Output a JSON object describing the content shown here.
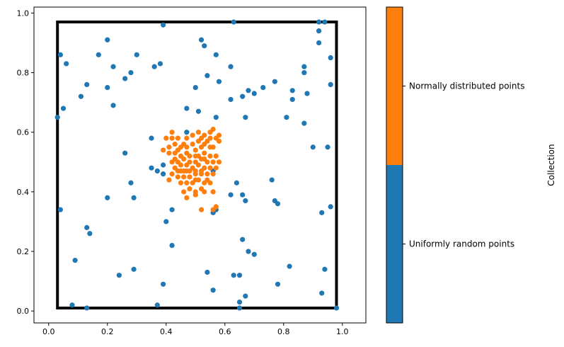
{
  "chart_data": {
    "type": "scatter",
    "title": "",
    "xlabel": "",
    "ylabel": "",
    "xlim": [
      -0.05,
      1.08
    ],
    "ylim": [
      -0.04,
      1.02
    ],
    "xticks": [
      0.0,
      0.2,
      0.4,
      0.6,
      0.8,
      1.0
    ],
    "yticks": [
      0.0,
      0.2,
      0.4,
      0.6,
      0.8,
      1.0
    ],
    "tick_labels": [
      "0.0",
      "0.2",
      "0.4",
      "0.6",
      "0.8",
      "1.0"
    ],
    "grid": false,
    "boundary_rectangle": {
      "x": [
        0.03,
        0.98
      ],
      "y": [
        0.01,
        0.97
      ],
      "color": "#000000"
    },
    "colorbar": {
      "label": "Collection",
      "categories": [
        "Uniformly random points",
        "Normally distributed points"
      ]
    },
    "series": [
      {
        "name": "Uniformly random points",
        "color": "#1f77b4",
        "points": [
          [
            0.04,
            0.86
          ],
          [
            0.06,
            0.83
          ],
          [
            0.03,
            0.65
          ],
          [
            0.05,
            0.68
          ],
          [
            0.04,
            0.34
          ],
          [
            0.09,
            0.17
          ],
          [
            0.08,
            0.02
          ],
          [
            0.13,
            0.01
          ],
          [
            0.13,
            0.28
          ],
          [
            0.14,
            0.26
          ],
          [
            0.11,
            0.72
          ],
          [
            0.13,
            0.76
          ],
          [
            0.17,
            0.86
          ],
          [
            0.2,
            0.91
          ],
          [
            0.22,
            0.82
          ],
          [
            0.2,
            0.75
          ],
          [
            0.22,
            0.69
          ],
          [
            0.26,
            0.78
          ],
          [
            0.28,
            0.8
          ],
          [
            0.3,
            0.86
          ],
          [
            0.26,
            0.53
          ],
          [
            0.2,
            0.38
          ],
          [
            0.28,
            0.43
          ],
          [
            0.29,
            0.38
          ],
          [
            0.24,
            0.12
          ],
          [
            0.29,
            0.14
          ],
          [
            0.39,
            0.96
          ],
          [
            0.38,
            0.83
          ],
          [
            0.36,
            0.82
          ],
          [
            0.35,
            0.58
          ],
          [
            0.35,
            0.48
          ],
          [
            0.37,
            0.47
          ],
          [
            0.39,
            0.49
          ],
          [
            0.39,
            0.46
          ],
          [
            0.4,
            0.3
          ],
          [
            0.42,
            0.34
          ],
          [
            0.42,
            0.22
          ],
          [
            0.39,
            0.09
          ],
          [
            0.37,
            0.02
          ],
          [
            0.47,
            0.6
          ],
          [
            0.47,
            0.68
          ],
          [
            0.5,
            0.75
          ],
          [
            0.51,
            0.67
          ],
          [
            0.52,
            0.91
          ],
          [
            0.53,
            0.89
          ],
          [
            0.54,
            0.79
          ],
          [
            0.57,
            0.86
          ],
          [
            0.58,
            0.77
          ],
          [
            0.63,
            0.97
          ],
          [
            0.62,
            0.82
          ],
          [
            0.62,
            0.71
          ],
          [
            0.57,
            0.65
          ],
          [
            0.66,
            0.72
          ],
          [
            0.68,
            0.74
          ],
          [
            0.7,
            0.73
          ],
          [
            0.73,
            0.75
          ],
          [
            0.77,
            0.77
          ],
          [
            0.81,
            0.65
          ],
          [
            0.83,
            0.74
          ],
          [
            0.83,
            0.71
          ],
          [
            0.87,
            0.8
          ],
          [
            0.87,
            0.82
          ],
          [
            0.88,
            0.73
          ],
          [
            0.87,
            0.63
          ],
          [
            0.92,
            0.97
          ],
          [
            0.94,
            0.97
          ],
          [
            0.92,
            0.94
          ],
          [
            0.92,
            0.9
          ],
          [
            0.96,
            0.85
          ],
          [
            0.96,
            0.76
          ],
          [
            0.9,
            0.55
          ],
          [
            0.95,
            0.55
          ],
          [
            0.96,
            0.35
          ],
          [
            0.93,
            0.33
          ],
          [
            0.94,
            0.14
          ],
          [
            0.93,
            0.06
          ],
          [
            0.98,
            0.01
          ],
          [
            0.82,
            0.15
          ],
          [
            0.78,
            0.09
          ],
          [
            0.76,
            0.44
          ],
          [
            0.77,
            0.37
          ],
          [
            0.78,
            0.36
          ],
          [
            0.67,
            0.65
          ],
          [
            0.64,
            0.43
          ],
          [
            0.62,
            0.39
          ],
          [
            0.66,
            0.39
          ],
          [
            0.67,
            0.37
          ],
          [
            0.66,
            0.24
          ],
          [
            0.68,
            0.2
          ],
          [
            0.7,
            0.19
          ],
          [
            0.63,
            0.12
          ],
          [
            0.65,
            0.12
          ],
          [
            0.67,
            0.05
          ],
          [
            0.65,
            0.03
          ],
          [
            0.65,
            0.01
          ],
          [
            0.56,
            0.07
          ],
          [
            0.54,
            0.13
          ],
          [
            0.56,
            0.33
          ],
          [
            0.57,
            0.34
          ],
          [
            0.56,
            0.47
          ]
        ]
      },
      {
        "name": "Normally distributed points",
        "color": "#ff7f0e",
        "points": [
          [
            0.42,
            0.6
          ],
          [
            0.4,
            0.58
          ],
          [
            0.42,
            0.58
          ],
          [
            0.44,
            0.58
          ],
          [
            0.41,
            0.55
          ],
          [
            0.43,
            0.56
          ],
          [
            0.39,
            0.54
          ],
          [
            0.41,
            0.53
          ],
          [
            0.43,
            0.53
          ],
          [
            0.45,
            0.52
          ],
          [
            0.47,
            0.53
          ],
          [
            0.49,
            0.56
          ],
          [
            0.47,
            0.55
          ],
          [
            0.5,
            0.54
          ],
          [
            0.52,
            0.55
          ],
          [
            0.54,
            0.57
          ],
          [
            0.52,
            0.58
          ],
          [
            0.55,
            0.58
          ],
          [
            0.57,
            0.58
          ],
          [
            0.58,
            0.57
          ],
          [
            0.56,
            0.55
          ],
          [
            0.53,
            0.53
          ],
          [
            0.55,
            0.52
          ],
          [
            0.57,
            0.52
          ],
          [
            0.58,
            0.5
          ],
          [
            0.56,
            0.5
          ],
          [
            0.54,
            0.5
          ],
          [
            0.52,
            0.51
          ],
          [
            0.5,
            0.52
          ],
          [
            0.48,
            0.52
          ],
          [
            0.46,
            0.51
          ],
          [
            0.44,
            0.5
          ],
          [
            0.42,
            0.5
          ],
          [
            0.43,
            0.48
          ],
          [
            0.45,
            0.47
          ],
          [
            0.47,
            0.47
          ],
          [
            0.49,
            0.48
          ],
          [
            0.51,
            0.49
          ],
          [
            0.53,
            0.48
          ],
          [
            0.55,
            0.48
          ],
          [
            0.57,
            0.48
          ],
          [
            0.56,
            0.46
          ],
          [
            0.54,
            0.46
          ],
          [
            0.52,
            0.46
          ],
          [
            0.5,
            0.46
          ],
          [
            0.48,
            0.45
          ],
          [
            0.46,
            0.45
          ],
          [
            0.44,
            0.45
          ],
          [
            0.42,
            0.46
          ],
          [
            0.41,
            0.44
          ],
          [
            0.45,
            0.43
          ],
          [
            0.47,
            0.43
          ],
          [
            0.49,
            0.43
          ],
          [
            0.51,
            0.44
          ],
          [
            0.53,
            0.43
          ],
          [
            0.55,
            0.43
          ],
          [
            0.52,
            0.41
          ],
          [
            0.5,
            0.4
          ],
          [
            0.48,
            0.41
          ],
          [
            0.46,
            0.4
          ],
          [
            0.47,
            0.38
          ],
          [
            0.5,
            0.39
          ],
          [
            0.53,
            0.4
          ],
          [
            0.56,
            0.4
          ],
          [
            0.52,
            0.34
          ],
          [
            0.56,
            0.34
          ],
          [
            0.57,
            0.35
          ],
          [
            0.46,
            0.56
          ],
          [
            0.44,
            0.54
          ],
          [
            0.48,
            0.5
          ],
          [
            0.5,
            0.5
          ],
          [
            0.51,
            0.52
          ],
          [
            0.53,
            0.51
          ],
          [
            0.55,
            0.55
          ],
          [
            0.49,
            0.59
          ],
          [
            0.47,
            0.58
          ],
          [
            0.51,
            0.6
          ],
          [
            0.53,
            0.59
          ],
          [
            0.55,
            0.6
          ],
          [
            0.56,
            0.61
          ],
          [
            0.58,
            0.59
          ],
          [
            0.45,
            0.49
          ],
          [
            0.47,
            0.49
          ],
          [
            0.44,
            0.47
          ],
          [
            0.46,
            0.47
          ],
          [
            0.5,
            0.47
          ],
          [
            0.52,
            0.47
          ],
          [
            0.54,
            0.44
          ],
          [
            0.5,
            0.44
          ],
          [
            0.48,
            0.47
          ],
          [
            0.43,
            0.51
          ],
          [
            0.45,
            0.55
          ],
          [
            0.51,
            0.57
          ],
          [
            0.53,
            0.56
          ]
        ]
      }
    ]
  }
}
